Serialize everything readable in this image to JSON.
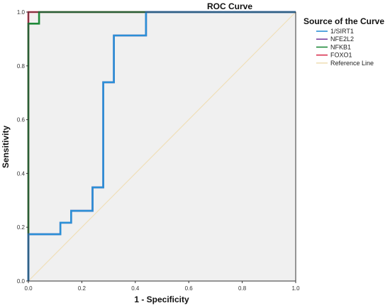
{
  "chart_data": {
    "type": "line",
    "title": "ROC Curve",
    "xlabel": "1 - Specificity",
    "ylabel": "Sensitivity",
    "xlim": [
      0,
      1
    ],
    "ylim": [
      0,
      1
    ],
    "x_ticks": [
      "0.0",
      "0.2",
      "0.4",
      "0.6",
      "0.8",
      "1.0"
    ],
    "y_ticks": [
      "0.0",
      "0.2",
      "0.4",
      "0.6",
      "0.8",
      "1.0"
    ],
    "grid": false,
    "legend_title": "Source of the Curve",
    "legend_position": "right",
    "series": [
      {
        "name": "1/SIRT1",
        "color": "#2b8fd6",
        "x": [
          0,
          0,
          0.12,
          0.12,
          0.16,
          0.16,
          0.24,
          0.24,
          0.28,
          0.28,
          0.32,
          0.32,
          0.44,
          0.44,
          1.0
        ],
        "y": [
          0,
          0.174,
          0.174,
          0.217,
          0.217,
          0.261,
          0.261,
          0.348,
          0.348,
          0.739,
          0.739,
          0.913,
          0.913,
          1.0,
          1.0
        ]
      },
      {
        "name": "NFE2L2",
        "color": "#7b3f9e",
        "x": [
          0,
          0,
          0.12,
          0.12,
          0.16,
          0.16,
          0.24,
          0.24,
          0.28,
          0.28,
          0.32,
          0.32,
          0.44,
          0.44,
          1.0
        ],
        "y": [
          0,
          0.174,
          0.174,
          0.217,
          0.217,
          0.261,
          0.261,
          0.348,
          0.348,
          0.739,
          0.739,
          0.913,
          0.913,
          1.0,
          1.0
        ]
      },
      {
        "name": "NFKB1",
        "color": "#1f8a3a",
        "x": [
          0,
          0,
          0.04,
          0.04,
          1.0
        ],
        "y": [
          0,
          0.957,
          0.957,
          1.0,
          1.0
        ]
      },
      {
        "name": "FOXO1",
        "color": "#d9304f",
        "x": [
          0,
          0,
          1.0
        ],
        "y": [
          0,
          1.0,
          1.0
        ]
      },
      {
        "name": "Reference Line",
        "color": "#f0dfb8",
        "x": [
          0,
          1.0
        ],
        "y": [
          0,
          1.0
        ]
      }
    ]
  }
}
